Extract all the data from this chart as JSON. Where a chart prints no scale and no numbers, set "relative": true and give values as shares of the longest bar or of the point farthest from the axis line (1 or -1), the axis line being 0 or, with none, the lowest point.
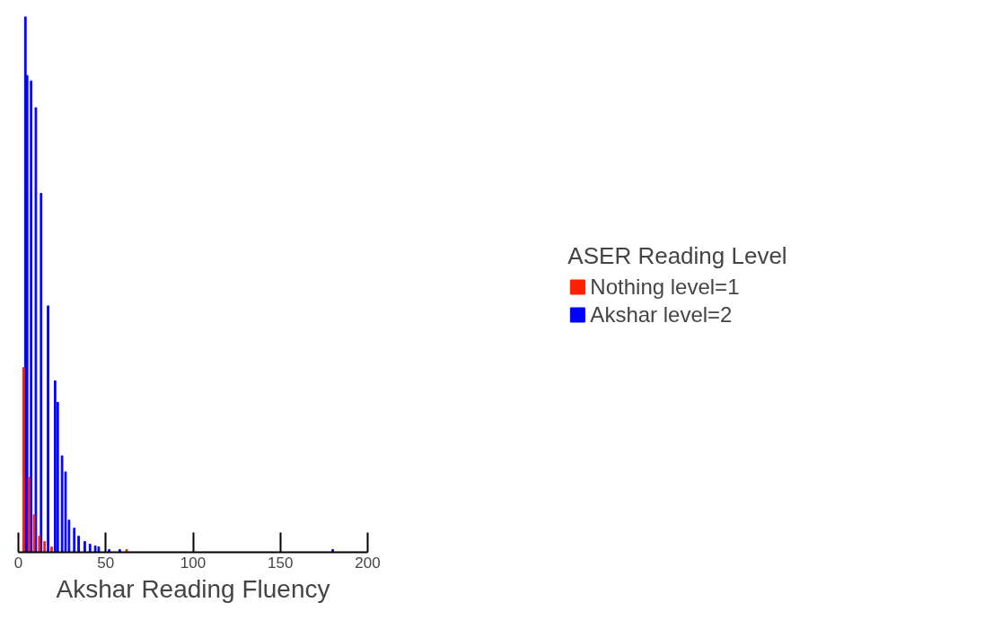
{
  "chart_data": {
    "type": "bar",
    "relative": true,
    "xlabel": "Akshar Reading Fluency",
    "legend_title": "ASER Reading Level",
    "legend": "right",
    "grid": false,
    "xlim": [
      0,
      200
    ],
    "xticks": [
      0,
      50,
      100,
      150,
      200
    ],
    "series": [
      {
        "name": "Akshar level=2",
        "color": "#0000ff",
        "x": [
          4,
          5,
          7.3,
          10,
          13,
          17,
          21,
          22.5,
          25,
          27,
          29,
          32,
          34.5,
          38,
          41,
          44,
          46,
          52,
          58,
          180
        ],
        "values": [
          1.0,
          0.89,
          0.88,
          0.83,
          0.67,
          0.46,
          0.32,
          0.28,
          0.18,
          0.15,
          0.06,
          0.045,
          0.03,
          0.02,
          0.015,
          0.012,
          0.01,
          0.005,
          0.005,
          0.005
        ]
      },
      {
        "name": "Nothing level=1",
        "color": "#ff2000",
        "x": [
          3,
          6,
          9,
          12,
          15,
          19,
          62
        ],
        "values": [
          0.345,
          0.14,
          0.07,
          0.03,
          0.02,
          0.01,
          0.005
        ]
      }
    ]
  }
}
